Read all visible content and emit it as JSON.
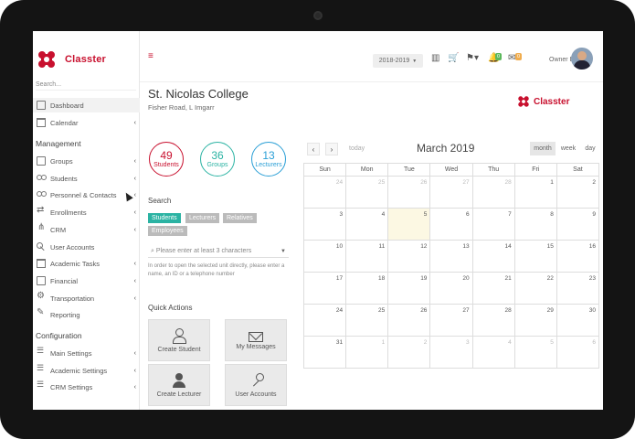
{
  "brand": {
    "name": "Classter",
    "color": "#c8102e"
  },
  "sidebar": {
    "search_placeholder": "Search...",
    "items_top": [
      {
        "label": "Dashboard",
        "icon": "dashboard-icon",
        "active": true
      },
      {
        "label": "Calendar",
        "icon": "calendar-icon",
        "chevron": "‹"
      }
    ],
    "management_title": "Management",
    "management": [
      {
        "label": "Groups",
        "icon": "groups-icon",
        "chevron": "‹"
      },
      {
        "label": "Students",
        "icon": "students-icon",
        "chevron": "‹"
      },
      {
        "label": "Personnel & Contacts",
        "icon": "personnel-icon",
        "chevron": "‹"
      },
      {
        "label": "Enrollments",
        "icon": "enrollments-icon",
        "chevron": "‹"
      },
      {
        "label": "CRM",
        "icon": "crm-icon",
        "chevron": "‹"
      },
      {
        "label": "User Accounts",
        "icon": "key-icon"
      },
      {
        "label": "Academic Tasks",
        "icon": "tasks-icon",
        "chevron": "‹"
      },
      {
        "label": "Financial",
        "icon": "financial-icon",
        "chevron": "‹"
      },
      {
        "label": "Transportation",
        "icon": "transportation-icon",
        "chevron": "‹"
      },
      {
        "label": "Reporting",
        "icon": "reporting-icon"
      }
    ],
    "configuration_title": "Configuration",
    "configuration": [
      {
        "label": "Main Settings",
        "icon": "settings-icon",
        "chevron": "‹"
      },
      {
        "label": "Academic Settings",
        "icon": "academic-settings-icon",
        "chevron": "‹"
      },
      {
        "label": "CRM Settings",
        "icon": "crm-settings-icon",
        "chevron": "‹"
      }
    ]
  },
  "topbar": {
    "menu_icon": "≡",
    "year": "2018-2019",
    "owner": "Owner Beta",
    "badge_green": "0",
    "badge_orange": "0",
    "badge_green_color": "#5cb85c",
    "badge_orange_color": "#f0ad4e"
  },
  "header": {
    "college": "St. Nicolas College",
    "address": "Fisher Road, L Imgarr"
  },
  "stats": [
    {
      "num": "49",
      "label": "Students",
      "color": "#c8102e"
    },
    {
      "num": "36",
      "label": "Groups",
      "color": "#2bb3a3"
    },
    {
      "num": "13",
      "label": "Lecturers",
      "color": "#2a9fd6"
    }
  ],
  "search": {
    "title": "Search",
    "chips": [
      "Students",
      "Lecturers",
      "Relatives",
      "Employees"
    ],
    "placeholder": "Please enter at least 3 characters",
    "hint": "In order to open the selected unit directly, please enter a name, an ID or a telephone number"
  },
  "quick_actions": {
    "title": "Quick Actions",
    "buttons": [
      "Create Student",
      "My Messages",
      "Create Lecturer",
      "User Accounts"
    ]
  },
  "calendar": {
    "prev": "‹",
    "next": "›",
    "today_label": "today",
    "title": "March 2019",
    "views": [
      "month",
      "week",
      "day"
    ],
    "weekdays": [
      "Sun",
      "Mon",
      "Tue",
      "Wed",
      "Thu",
      "Fri",
      "Sat"
    ],
    "weeks": [
      [
        "24",
        "25",
        "26",
        "27",
        "28",
        "1",
        "2"
      ],
      [
        "3",
        "4",
        "5",
        "6",
        "7",
        "8",
        "9"
      ],
      [
        "10",
        "11",
        "12",
        "13",
        "14",
        "15",
        "16"
      ],
      [
        "17",
        "18",
        "19",
        "20",
        "21",
        "22",
        "23"
      ],
      [
        "24",
        "25",
        "26",
        "27",
        "28",
        "29",
        "30"
      ],
      [
        "31",
        "1",
        "2",
        "3",
        "4",
        "5",
        "6"
      ]
    ],
    "today_date": "5"
  }
}
